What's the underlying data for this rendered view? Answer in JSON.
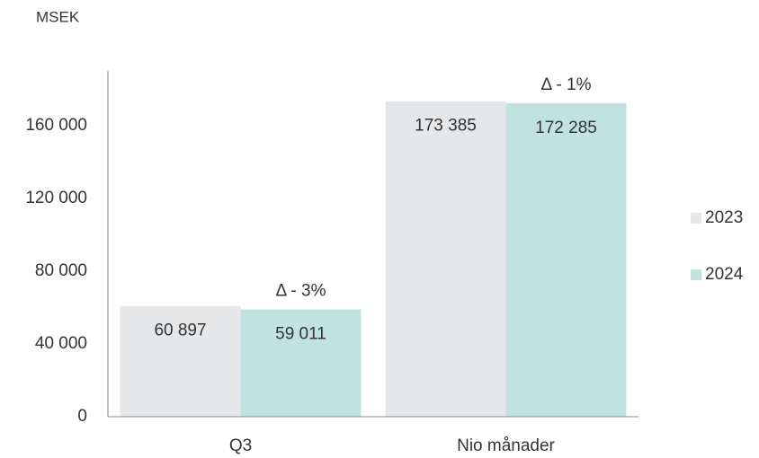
{
  "chart_data": {
    "type": "bar",
    "y_axis_label": "MSEK",
    "categories": [
      "Q3",
      "Nio månader"
    ],
    "series": [
      {
        "name": "2023",
        "color": "#e6e7e9",
        "values": [
          60897,
          173385
        ],
        "value_labels": [
          "60 897",
          "173 385"
        ]
      },
      {
        "name": "2024",
        "color": "#c0e3e0",
        "values": [
          59011,
          172285
        ],
        "value_labels": [
          "59 011",
          "172 285"
        ]
      }
    ],
    "annotations": [
      "Δ - 3%",
      "Δ - 1%"
    ],
    "ylim": [
      0,
      190000
    ],
    "yticks": [
      0,
      {
        "value": 40000,
        "label": "40 000"
      },
      {
        "value": 80000,
        "label": "80 000"
      },
      {
        "value": 120000,
        "label": "120 000"
      },
      {
        "value": 160000,
        "label": "160 000"
      }
    ],
    "grid": false,
    "legend": "right"
  }
}
